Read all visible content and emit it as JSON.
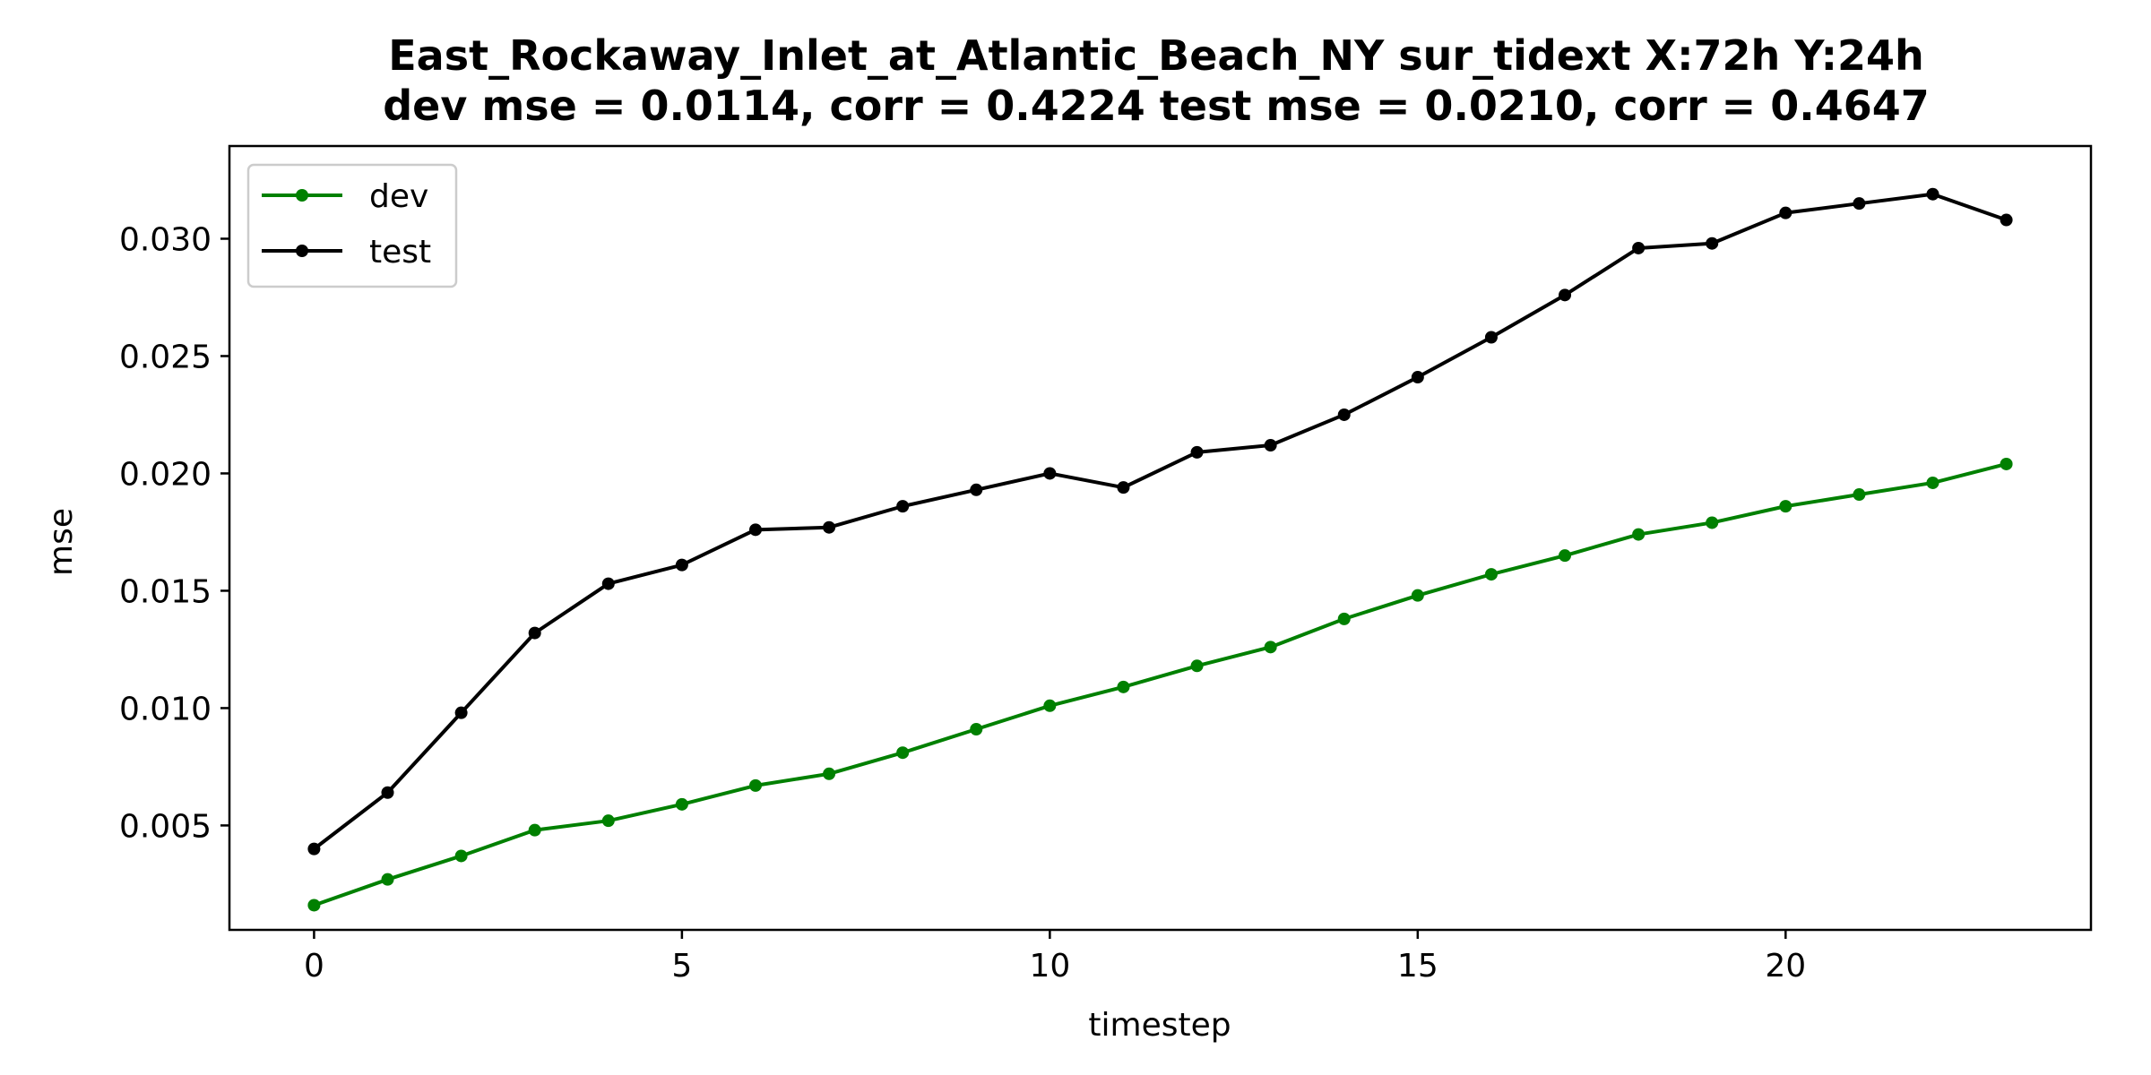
{
  "chart_data": {
    "type": "line",
    "title": "East_Rockaway_Inlet_at_Atlantic_Beach_NY   sur_tidext   X:72h   Y:24h",
    "subtitle": "dev mse = 0.0114, corr = 0.4224   test mse = 0.0210, corr = 0.4647",
    "xlabel": "timestep",
    "ylabel": "mse",
    "xlim": [
      -1.15,
      24.15
    ],
    "ylim": [
      0.00055,
      0.03395
    ],
    "xticks": [
      0,
      5,
      10,
      15,
      20
    ],
    "xtick_labels": [
      "0",
      "5",
      "10",
      "15",
      "20"
    ],
    "yticks": [
      0.005,
      0.01,
      0.015,
      0.02,
      0.025,
      0.03
    ],
    "ytick_labels": [
      "0.005",
      "0.010",
      "0.015",
      "0.020",
      "0.025",
      "0.030"
    ],
    "grid": false,
    "legend_position": "top-left",
    "x": [
      0,
      1,
      2,
      3,
      4,
      5,
      6,
      7,
      8,
      9,
      10,
      11,
      12,
      13,
      14,
      15,
      16,
      17,
      18,
      19,
      20,
      21,
      22,
      23
    ],
    "series": [
      {
        "name": "dev",
        "color": "#008000",
        "values": [
          0.0016,
          0.0027,
          0.0037,
          0.0048,
          0.0052,
          0.0059,
          0.0067,
          0.0072,
          0.0081,
          0.0091,
          0.0101,
          0.0109,
          0.0118,
          0.0126,
          0.0138,
          0.0148,
          0.0157,
          0.0165,
          0.0174,
          0.0179,
          0.0186,
          0.0191,
          0.0196,
          0.0204
        ]
      },
      {
        "name": "test",
        "color": "#000000",
        "values": [
          0.004,
          0.0064,
          0.0098,
          0.0132,
          0.0153,
          0.0161,
          0.0176,
          0.0177,
          0.0186,
          0.0193,
          0.02,
          0.0194,
          0.0209,
          0.0212,
          0.0225,
          0.0241,
          0.0258,
          0.0276,
          0.0296,
          0.0298,
          0.0311,
          0.0315,
          0.0319,
          0.0308
        ]
      }
    ]
  }
}
